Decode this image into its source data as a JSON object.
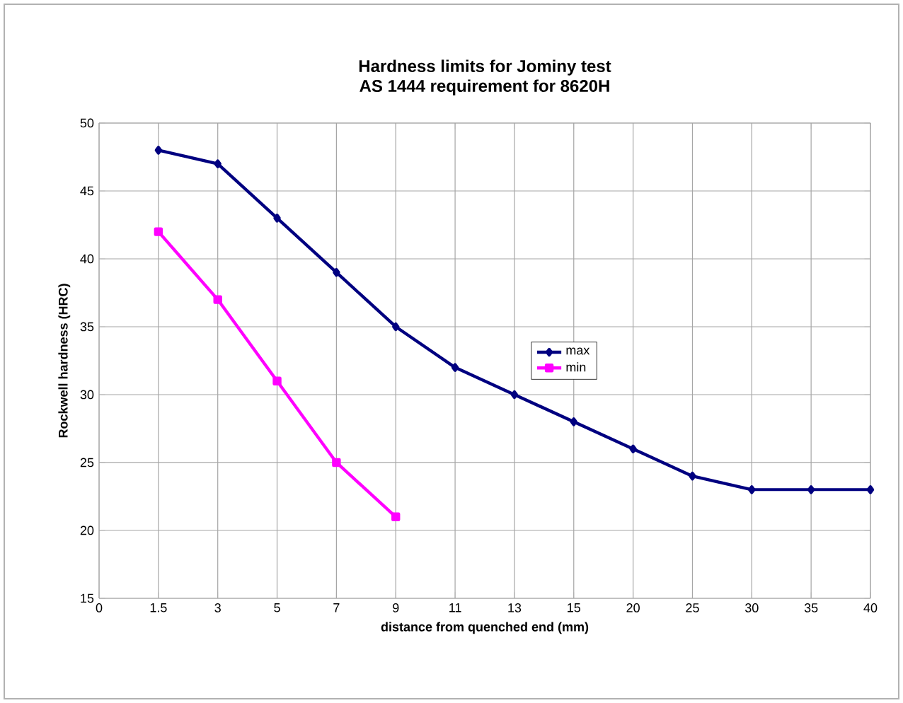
{
  "chart_data": {
    "type": "line",
    "title": "Hardness limits for Jominy test",
    "subtitle": "AS 1444 requirement for 8620H",
    "xlabel": "distance from quenched end (mm)",
    "ylabel": "Rockwell hardness (HRC)",
    "categories": [
      "0",
      "1.5",
      "3",
      "5",
      "7",
      "9",
      "11",
      "13",
      "15",
      "20",
      "25",
      "30",
      "35",
      "40"
    ],
    "series": [
      {
        "name": "max",
        "color": "#000080",
        "marker": "diamond",
        "values": [
          null,
          48,
          47,
          43,
          39,
          35,
          32,
          30,
          28,
          26,
          24,
          23,
          23,
          23
        ]
      },
      {
        "name": "min",
        "color": "#ff00ff",
        "marker": "square",
        "values": [
          null,
          42,
          37,
          31,
          25,
          21,
          null,
          null,
          null,
          null,
          null,
          null,
          null,
          null
        ]
      }
    ],
    "ylim": [
      15,
      50
    ],
    "yticks": [
      15,
      20,
      25,
      30,
      35,
      40,
      45,
      50
    ],
    "grid": true,
    "legend": "center",
    "line_style": "solid"
  }
}
